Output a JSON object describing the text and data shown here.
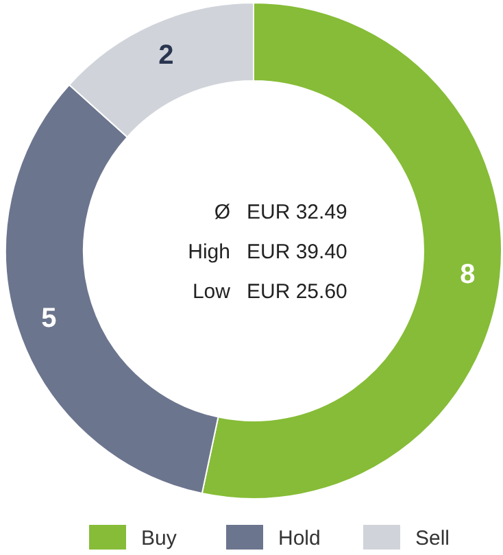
{
  "chart_data": {
    "type": "donut",
    "categories": [
      "Buy",
      "Hold",
      "Sell"
    ],
    "values": [
      8,
      5,
      2
    ],
    "colors": [
      "#86bc37",
      "#6c758e",
      "#d0d4da"
    ],
    "data_labels": true,
    "legend": "bottom",
    "annotations": [
      "Ø EUR 32.49",
      "High EUR 39.40",
      "Low EUR 25.60"
    ]
  }
}
